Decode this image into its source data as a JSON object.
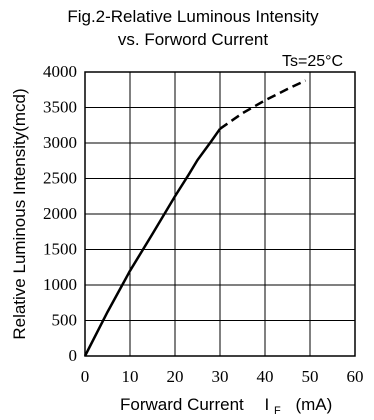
{
  "chart_data": {
    "type": "line",
    "title_line1": "Fig.2-Relative Luminous Intensity",
    "title_line2": "vs. Forword Current",
    "condition": "Ts=25°C",
    "xlabel_main": "Forward Current",
    "xlabel_symbol": "I",
    "xlabel_subscript": "F",
    "xlabel_unit": "(mA)",
    "ylabel": "Relative Luminous Intensity(mcd)",
    "xlim": [
      0,
      60
    ],
    "ylim": [
      0,
      4000
    ],
    "xticks": [
      "0",
      "10",
      "20",
      "30",
      "40",
      "50",
      "60"
    ],
    "yticks": [
      "0",
      "500",
      "1000",
      "1500",
      "2000",
      "2500",
      "3000",
      "3500",
      "4000"
    ],
    "grid": true,
    "series": [
      {
        "style": "solid",
        "x": [
          0,
          5,
          10,
          15,
          20,
          23,
          25,
          28,
          30
        ],
        "y": [
          0,
          620,
          1200,
          1720,
          2250,
          2550,
          2760,
          3020,
          3200
        ]
      },
      {
        "style": "dashed",
        "x": [
          30,
          35,
          40,
          45,
          49
        ],
        "y": [
          3200,
          3420,
          3600,
          3760,
          3880
        ]
      }
    ]
  }
}
